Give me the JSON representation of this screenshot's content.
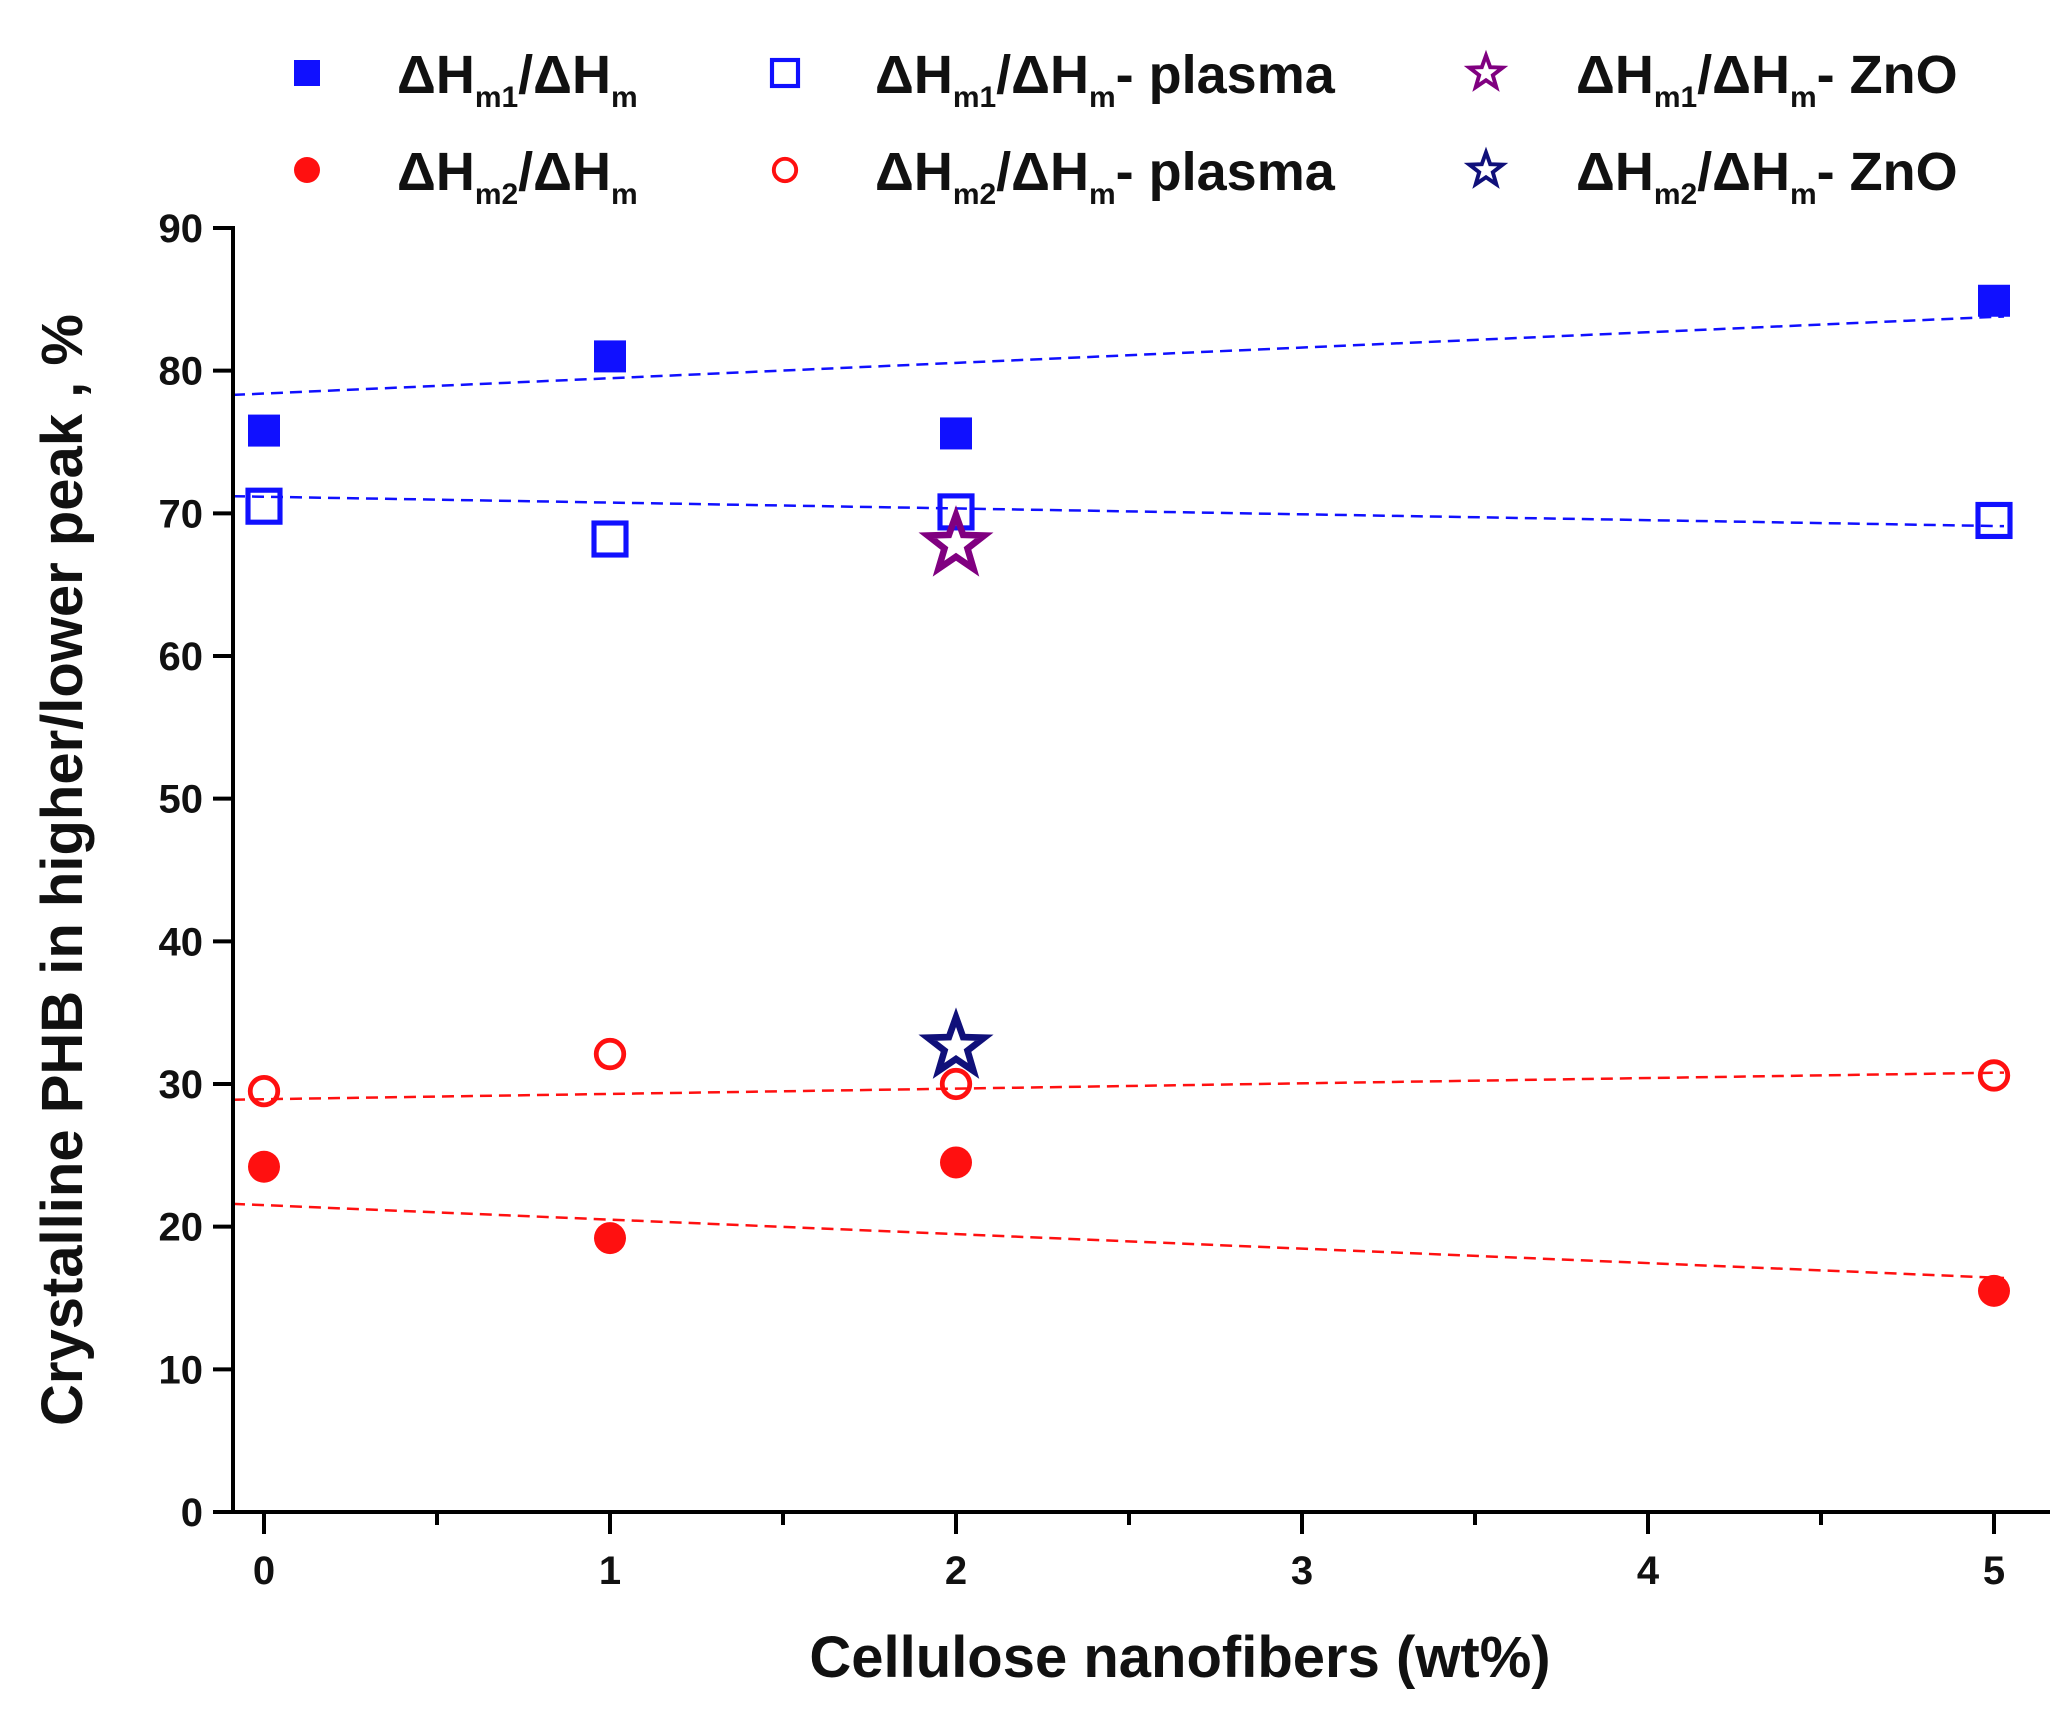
{
  "chart_data": {
    "type": "scatter",
    "xlabel": "Cellulose nanofibers (wt%)",
    "ylabel": "Crystalline PHB in higher/lower peak , %",
    "xlim": [
      -0.1,
      5.1
    ],
    "ylim": [
      0,
      90
    ],
    "x_ticks": [
      0,
      1,
      2,
      3,
      4,
      5
    ],
    "y_ticks": [
      0,
      10,
      20,
      30,
      40,
      50,
      60,
      70,
      80,
      90
    ],
    "legend_position": "top",
    "series": [
      {
        "name": "ΔHm1/ΔHm",
        "base": "ΔH",
        "sub1": "m1",
        "mid": "/ΔH",
        "sub2": "m",
        "suffix": "",
        "marker": "square",
        "filled": true,
        "color": "#1010ff",
        "x": [
          0,
          1,
          2,
          5
        ],
        "values": [
          75.8,
          81.0,
          75.6,
          84.9
        ],
        "trend": [
          78.3,
          83.8
        ]
      },
      {
        "name": "ΔHm1/ΔHm - plasma",
        "base": "ΔH",
        "sub1": "m1",
        "mid": "/ΔH",
        "sub2": "m",
        "suffix": "- plasma",
        "marker": "square",
        "filled": false,
        "color": "#1010ff",
        "x": [
          0,
          1,
          2,
          5
        ],
        "values": [
          70.5,
          68.2,
          70.1,
          69.5
        ],
        "trend": [
          71.2,
          69.1
        ]
      },
      {
        "name": "ΔHm1/ΔHm - ZnO",
        "base": "ΔH",
        "sub1": "m1",
        "mid": "/ΔH",
        "sub2": "m",
        "suffix": "- ZnO",
        "marker": "star",
        "filled": false,
        "color": "#800080",
        "x": [
          2
        ],
        "values": [
          67.8
        ],
        "trend": null
      },
      {
        "name": "ΔHm2/ΔHm",
        "base": "ΔH",
        "sub1": "m2",
        "mid": "/ΔH",
        "sub2": "m",
        "suffix": "",
        "marker": "circle",
        "filled": true,
        "color": "#ff1010",
        "x": [
          0,
          1,
          2,
          5
        ],
        "values": [
          24.2,
          19.2,
          24.5,
          15.5
        ],
        "trend": [
          21.6,
          16.4
        ]
      },
      {
        "name": "ΔHm2/ΔHm - plasma",
        "base": "ΔH",
        "sub1": "m2",
        "mid": "/ΔH",
        "sub2": "m",
        "suffix": "- plasma",
        "marker": "circle",
        "filled": false,
        "color": "#ff1010",
        "x": [
          0,
          1,
          2,
          5
        ],
        "values": [
          29.5,
          32.1,
          30.0,
          30.6
        ],
        "trend": [
          28.9,
          30.8
        ]
      },
      {
        "name": "ΔHm2/ΔHm - ZnO",
        "base": "ΔH",
        "sub1": "m2",
        "mid": "/ΔH",
        "sub2": "m",
        "suffix": "- ZnO",
        "marker": "star",
        "filled": false,
        "color": "#10107a",
        "x": [
          2
        ],
        "values": [
          32.6
        ],
        "trend": null
      }
    ]
  }
}
